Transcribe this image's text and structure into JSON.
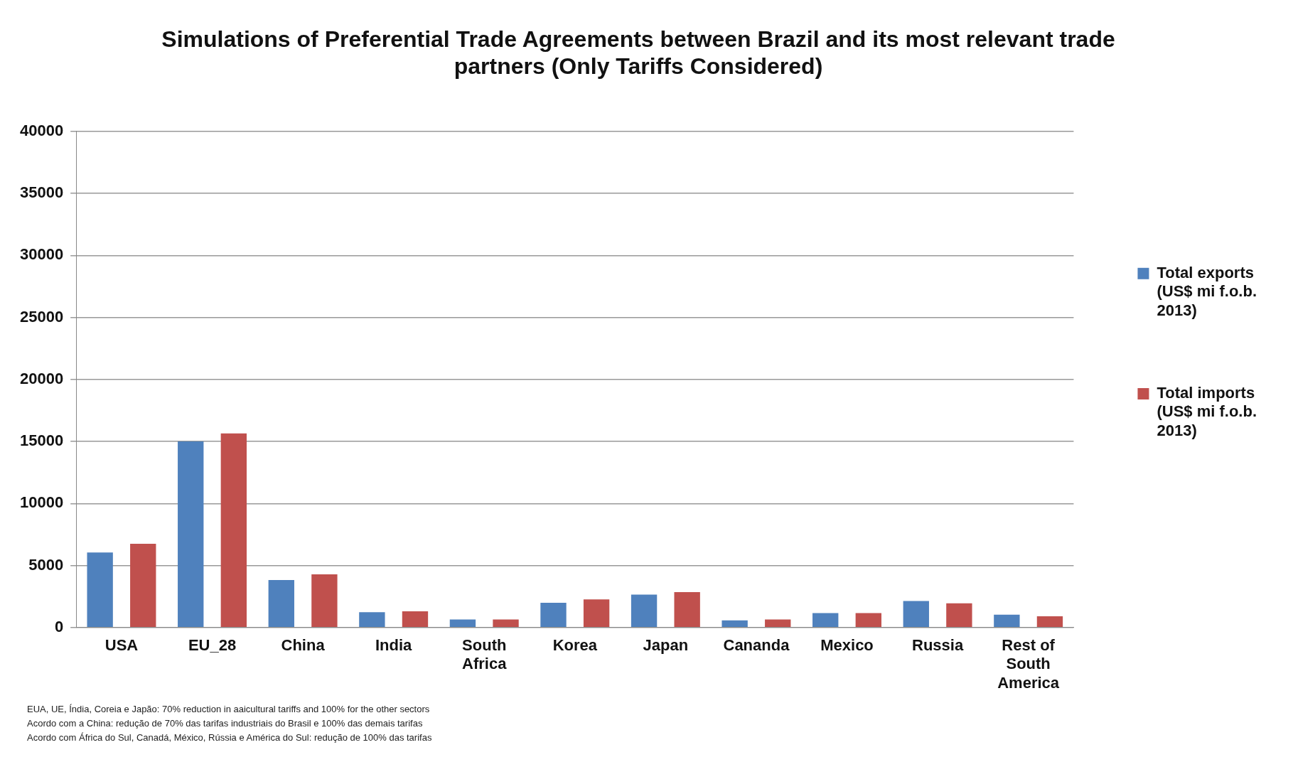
{
  "chart_data": {
    "type": "bar",
    "title": "Simulations of Preferential Trade Agreements between Brazil and its most relevant trade partners (Only Tariffs Considered)",
    "categories": [
      "USA",
      "EU_28",
      "China",
      "India",
      "South Africa",
      "Korea",
      "Japan",
      "Cananda",
      "Mexico",
      "Russia",
      "Rest of South America"
    ],
    "series": [
      {
        "name": "Total exports (US$ mi f.o.b. 2013)",
        "color": "#4f81bd",
        "values": [
          6050,
          15000,
          3830,
          1230,
          650,
          2000,
          2660,
          580,
          1170,
          2140,
          1040
        ]
      },
      {
        "name": "Total imports (US$ mi f.o.b. 2013)",
        "color": "#c0504d",
        "values": [
          6750,
          15650,
          4290,
          1300,
          650,
          2270,
          2860,
          650,
          1170,
          1950,
          910
        ]
      }
    ],
    "ylim": [
      0,
      40000
    ],
    "yticks": [
      0,
      5000,
      10000,
      15000,
      20000,
      25000,
      30000,
      35000,
      40000
    ],
    "grid": "y",
    "legend": "right",
    "annotations": [
      "EUA, UE, Índia, Coreia e Japão: 70% reduction in aaicultural tariffs and 100% for the other sectors",
      "Acordo com a China: redução de 70% das tarifas industriais do Brasil e 100% das demais tarifas",
      "Acordo com África do Sul, Canadá, México, Rússia e América do Sul: redução de 100% das tarifas"
    ]
  }
}
